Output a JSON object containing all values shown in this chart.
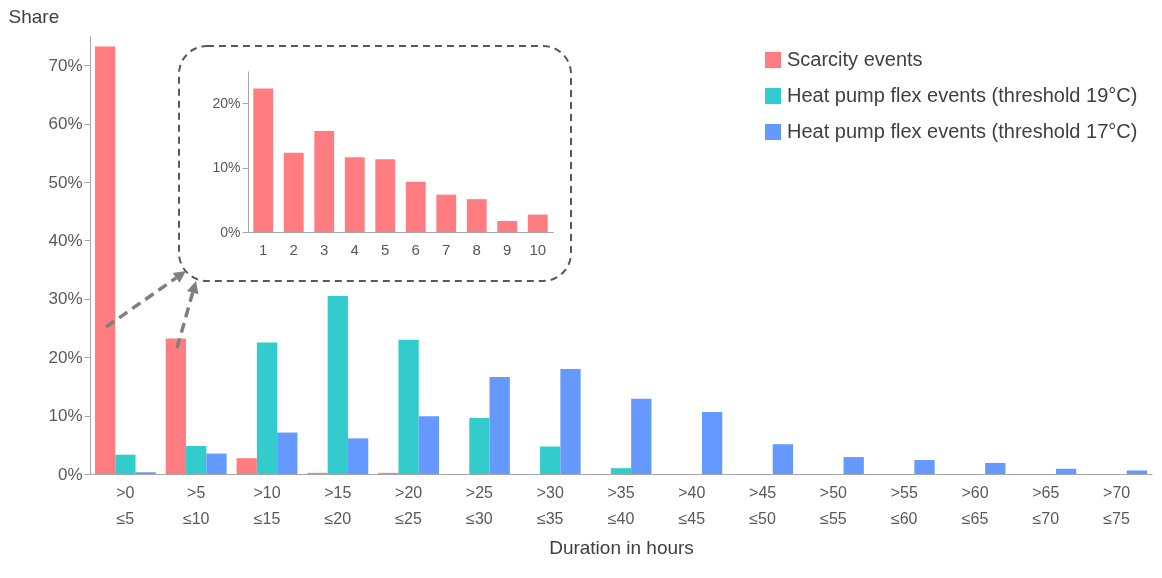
{
  "chart_data": [
    {
      "type": "bar",
      "ylabel": "Share",
      "xlabel": "Duration in hours",
      "categories": [
        ">0 ≤5",
        ">5 ≤10",
        ">10 ≤15",
        ">15 ≤20",
        ">20 ≤25",
        ">25 ≤30",
        ">30 ≤35",
        ">35 ≤40",
        ">40 ≤45",
        ">45 ≤50",
        ">50 ≤55",
        ">55 ≤60",
        ">60 ≤65",
        ">65 ≤70",
        ">70 ≤75"
      ],
      "series": [
        {
          "name": "Scarcity events",
          "color": "#ff7c80",
          "values": [
            73.2,
            23.2,
            2.7,
            0.2,
            0.2,
            0,
            0,
            0,
            0,
            0,
            0,
            0,
            0,
            0,
            0
          ]
        },
        {
          "name": "Heat pump flex events (threshold 19°C)",
          "color": "#33cccc",
          "values": [
            3.3,
            4.8,
            22.5,
            30.5,
            23.0,
            9.6,
            4.7,
            1.0,
            0,
            0,
            0,
            0,
            0,
            0,
            0
          ]
        },
        {
          "name": "Heat pump flex events (threshold 17°C)",
          "color": "#6699ff",
          "values": [
            0.3,
            3.5,
            7.1,
            6.1,
            9.9,
            16.6,
            18.0,
            12.9,
            10.6,
            5.1,
            2.9,
            2.4,
            1.9,
            0.9,
            0.6
          ]
        }
      ],
      "ylim": [
        0,
        75
      ],
      "yticks": [
        {
          "value": 0,
          "label": "0%"
        },
        {
          "value": 10,
          "label": "10%"
        },
        {
          "value": 20,
          "label": "20%"
        },
        {
          "value": 30,
          "label": "30%"
        },
        {
          "value": 40,
          "label": "40%"
        },
        {
          "value": 50,
          "label": "50%"
        },
        {
          "value": 60,
          "label": "60%"
        },
        {
          "value": 70,
          "label": "70%"
        }
      ],
      "grid": false,
      "legend": "top right"
    },
    {
      "type": "bar",
      "categories": [
        "1",
        "2",
        "3",
        "4",
        "5",
        "6",
        "7",
        "8",
        "9",
        "10"
      ],
      "color": "#ff7c80",
      "values": [
        22.3,
        12.3,
        15.7,
        11.6,
        11.3,
        7.8,
        5.8,
        5.1,
        1.7,
        2.7
      ],
      "ylim": [
        0,
        25
      ],
      "yticks": [
        {
          "value": 0,
          "label": "0%"
        },
        {
          "value": 10,
          "label": "10%"
        },
        {
          "value": 20,
          "label": "20%"
        }
      ],
      "grid": false
    }
  ]
}
